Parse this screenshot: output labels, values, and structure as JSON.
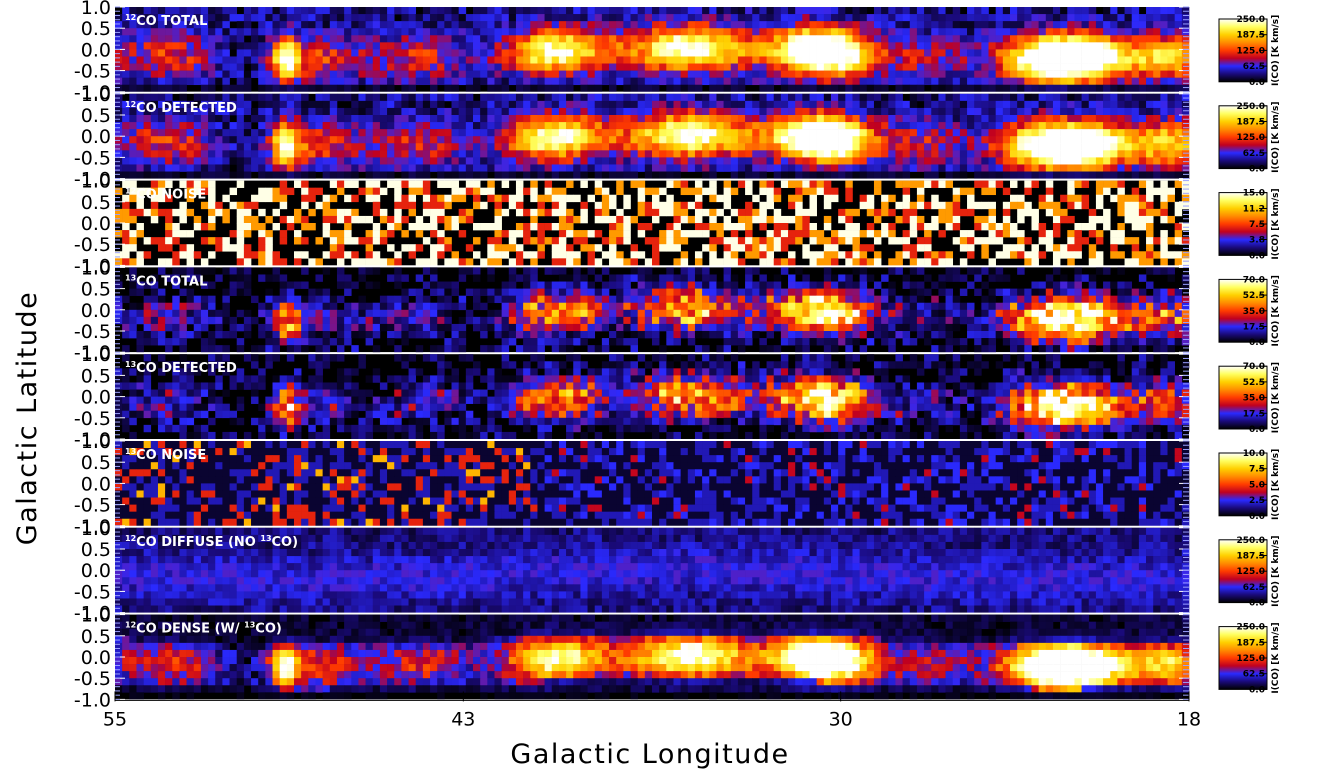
{
  "chart_data": {
    "type": "heatmap",
    "xlabel": "Galactic Longitude",
    "ylabel": "Galactic Latitude",
    "x_ticks": [
      "55",
      "43",
      "30",
      "18"
    ],
    "x_tick_values": [
      55,
      43,
      30,
      18
    ],
    "xlim": [
      55,
      18
    ],
    "y_ticks": [
      "1.0",
      "0.5",
      "0.0",
      "-0.5",
      "-1.0"
    ],
    "y_tick_values": [
      1.0,
      0.5,
      0.0,
      -0.5,
      -1.0
    ],
    "ylim": [
      -1.0,
      1.0
    ],
    "colorbar_label": "I(CO) [K km/s]",
    "colormap": [
      "#000000",
      "#1a0a7a",
      "#2a2aff",
      "#c00020",
      "#ff3b00",
      "#ff8c00",
      "#ffd000",
      "#ffff60",
      "#ffffff"
    ],
    "panels": [
      {
        "name_pre": "12",
        "name_post": "CO TOTAL",
        "name_sup2": "",
        "name_tail": "",
        "kind": "total12",
        "scale_max": 250.0,
        "cbar_ticks": [
          "250.0",
          "187.5",
          "125.0",
          "62.5",
          "0.0"
        ]
      },
      {
        "name_pre": "12",
        "name_post": "CO DETECTED",
        "name_sup2": "",
        "name_tail": "",
        "kind": "total12",
        "scale_max": 250.0,
        "cbar_ticks": [
          "250.0",
          "187.5",
          "125.0",
          "62.5",
          "0.0"
        ]
      },
      {
        "name_pre": "12",
        "name_post": "CO NOISE",
        "name_sup2": "",
        "name_tail": "",
        "kind": "noise12",
        "scale_max": 15.0,
        "cbar_ticks": [
          "15.0",
          "11.2",
          "7.5",
          "3.8",
          "0.0"
        ]
      },
      {
        "name_pre": "13",
        "name_post": "CO TOTAL",
        "name_sup2": "",
        "name_tail": "",
        "kind": "total13",
        "scale_max": 70.0,
        "cbar_ticks": [
          "70.0",
          "52.5",
          "35.0",
          "17.5",
          "0.0"
        ]
      },
      {
        "name_pre": "13",
        "name_post": "CO DETECTED",
        "name_sup2": "",
        "name_tail": "",
        "kind": "total13",
        "scale_max": 70.0,
        "cbar_ticks": [
          "70.0",
          "52.5",
          "35.0",
          "17.5",
          "0.0"
        ]
      },
      {
        "name_pre": "13",
        "name_post": "CO NOISE",
        "name_sup2": "",
        "name_tail": "",
        "kind": "noise13",
        "scale_max": 10.0,
        "cbar_ticks": [
          "10.0",
          "7.5",
          "5.0",
          "2.5",
          "0.0"
        ]
      },
      {
        "name_pre": "12",
        "name_post": "CO DIFFUSE (NO ",
        "name_sup2": "13",
        "name_tail": "CO)",
        "kind": "diffuse",
        "scale_max": 250.0,
        "cbar_ticks": [
          "250.0",
          "187.5",
          "125.0",
          "62.5",
          "0.0"
        ]
      },
      {
        "name_pre": "12",
        "name_post": "CO DENSE (W/ ",
        "name_sup2": "13",
        "name_tail": "CO)",
        "kind": "dense",
        "scale_max": 250.0,
        "cbar_ticks": [
          "250.0",
          "187.5",
          "125.0",
          "62.5",
          "0.0"
        ]
      }
    ]
  }
}
